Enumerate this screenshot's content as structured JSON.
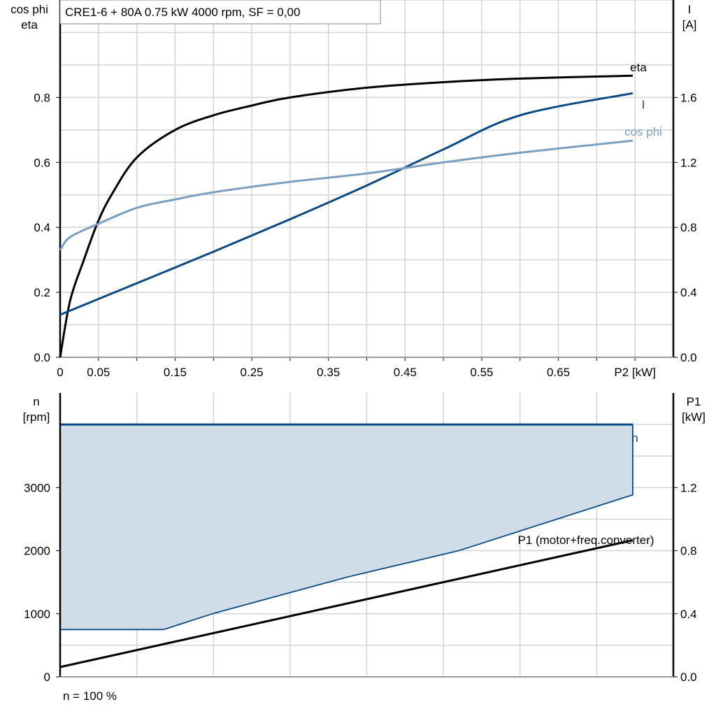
{
  "chart_data": [
    {
      "type": "line",
      "title": "CRE1-6 + 80A   0.75 kW   4000 rpm, SF = 0,00",
      "xlabel": "P2 [kW]",
      "ylabel_left": [
        "cos phi",
        "eta"
      ],
      "ylabel_right": [
        "I",
        "[A]"
      ],
      "xlim": [
        0,
        0.8
      ],
      "ylim_left": [
        0,
        1.1
      ],
      "ylim_right": [
        0,
        2.2
      ],
      "x_tick_labels": [
        "0",
        "0.05",
        "0.15",
        "0.25",
        "0.35",
        "0.45",
        "0.55",
        "0.65"
      ],
      "y_left_tick_labels": [
        "0.0",
        "0.2",
        "0.4",
        "0.6",
        "0.8"
      ],
      "y_right_tick_labels": [
        "0.0",
        "0.4",
        "0.8",
        "1.2",
        "1.6"
      ],
      "grid": true,
      "series": [
        {
          "name": "eta",
          "axis": "left",
          "color": "#000000",
          "x": [
            0,
            0.013,
            0.031,
            0.049,
            0.067,
            0.1,
            0.15,
            0.2,
            0.25,
            0.3,
            0.4,
            0.5,
            0.6,
            0.747
          ],
          "y": [
            0,
            0.174,
            0.3,
            0.415,
            0.5,
            0.615,
            0.7,
            0.745,
            0.775,
            0.8,
            0.83,
            0.847,
            0.858,
            0.867
          ]
        },
        {
          "name": "I",
          "axis": "right",
          "color": "#0b4a80",
          "x": [
            0,
            0.1,
            0.2,
            0.3,
            0.4,
            0.5,
            0.6,
            0.747
          ],
          "y": [
            0.262,
            0.456,
            0.65,
            0.85,
            1.058,
            1.28,
            1.49,
            1.626
          ]
        },
        {
          "name": "cos phi",
          "axis": "left",
          "color": "#7a9fc0",
          "x": [
            0,
            0.013,
            0.049,
            0.1,
            0.15,
            0.2,
            0.3,
            0.4,
            0.5,
            0.6,
            0.747
          ],
          "y": [
            0.33,
            0.37,
            0.41,
            0.46,
            0.486,
            0.508,
            0.54,
            0.566,
            0.6,
            0.63,
            0.667
          ]
        }
      ]
    },
    {
      "type": "area",
      "xlim": [
        0,
        0.8
      ],
      "ylabel_left": [
        "n",
        "[rpm]"
      ],
      "ylabel_right": [
        "P1",
        "[kW]"
      ],
      "ylim_left": [
        0,
        4500
      ],
      "ylim_right": [
        0,
        1.8
      ],
      "y_left_tick_labels": [
        "0",
        "1000",
        "2000",
        "3000"
      ],
      "y_right_tick_labels": [
        "0.0",
        "0.4",
        "0.8",
        "1.2"
      ],
      "grid": true,
      "footer": "n = 100 %",
      "series": [
        {
          "name": "n",
          "axis": "left",
          "color": "#0b4a80",
          "fill": "#d0dce7",
          "upper": {
            "x": [
              0,
              0.747
            ],
            "y": [
              4000,
              4000
            ]
          },
          "lower": {
            "x": [
              0,
              0.135,
              0.2,
              0.374,
              0.52,
              0.747
            ],
            "y": [
              750,
              750,
              1005,
              1580,
              2000,
              2885
            ]
          }
        },
        {
          "name": "P1 (motor+freq.converter)",
          "axis": "right",
          "color": "#000000",
          "x": [
            0,
            0.747
          ],
          "y": [
            0.062,
            0.866
          ]
        }
      ]
    }
  ]
}
